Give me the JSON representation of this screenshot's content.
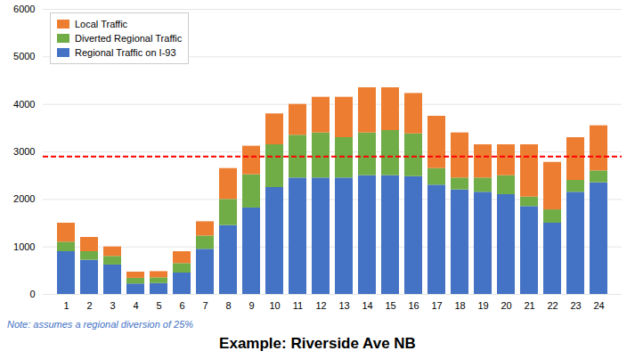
{
  "chart_data": {
    "type": "bar",
    "title": "Example: Riverside Ave NB",
    "categories": [
      1,
      2,
      3,
      4,
      5,
      6,
      7,
      8,
      9,
      10,
      11,
      12,
      13,
      14,
      15,
      16,
      17,
      18,
      19,
      20,
      21,
      22,
      23,
      24
    ],
    "stacked": true,
    "series": [
      {
        "name": "Regional Traffic on I-93",
        "color": "#4472C4",
        "values": [
          900,
          720,
          620,
          220,
          230,
          450,
          950,
          1450,
          1820,
          2250,
          2450,
          2450,
          2450,
          2500,
          2500,
          2480,
          2300,
          2200,
          2150,
          2100,
          1850,
          1500,
          2150,
          2350
        ]
      },
      {
        "name": "Diverted Regional Traffic",
        "color": "#70AD47",
        "values": [
          200,
          180,
          180,
          120,
          120,
          200,
          280,
          550,
          700,
          900,
          900,
          950,
          850,
          900,
          950,
          900,
          350,
          250,
          300,
          400,
          200,
          280,
          250,
          250
        ]
      },
      {
        "name": "Local Traffic",
        "color": "#ED7D31",
        "values": [
          400,
          300,
          200,
          130,
          130,
          250,
          300,
          650,
          600,
          650,
          650,
          750,
          850,
          950,
          900,
          850,
          1100,
          950,
          700,
          650,
          1100,
          1000,
          900,
          950
        ]
      }
    ],
    "ylim": [
      0,
      6000
    ],
    "yticks": [
      0,
      1000,
      2000,
      3000,
      4000,
      5000,
      6000
    ],
    "grid": true,
    "legend": "upper left",
    "reference_line": {
      "y": 2900,
      "color": "#FF0000",
      "line_style": "dashed"
    },
    "annotations": [
      {
        "text": "Note: assumes a regional diversion of 25%",
        "color": "#4472C4"
      }
    ]
  }
}
